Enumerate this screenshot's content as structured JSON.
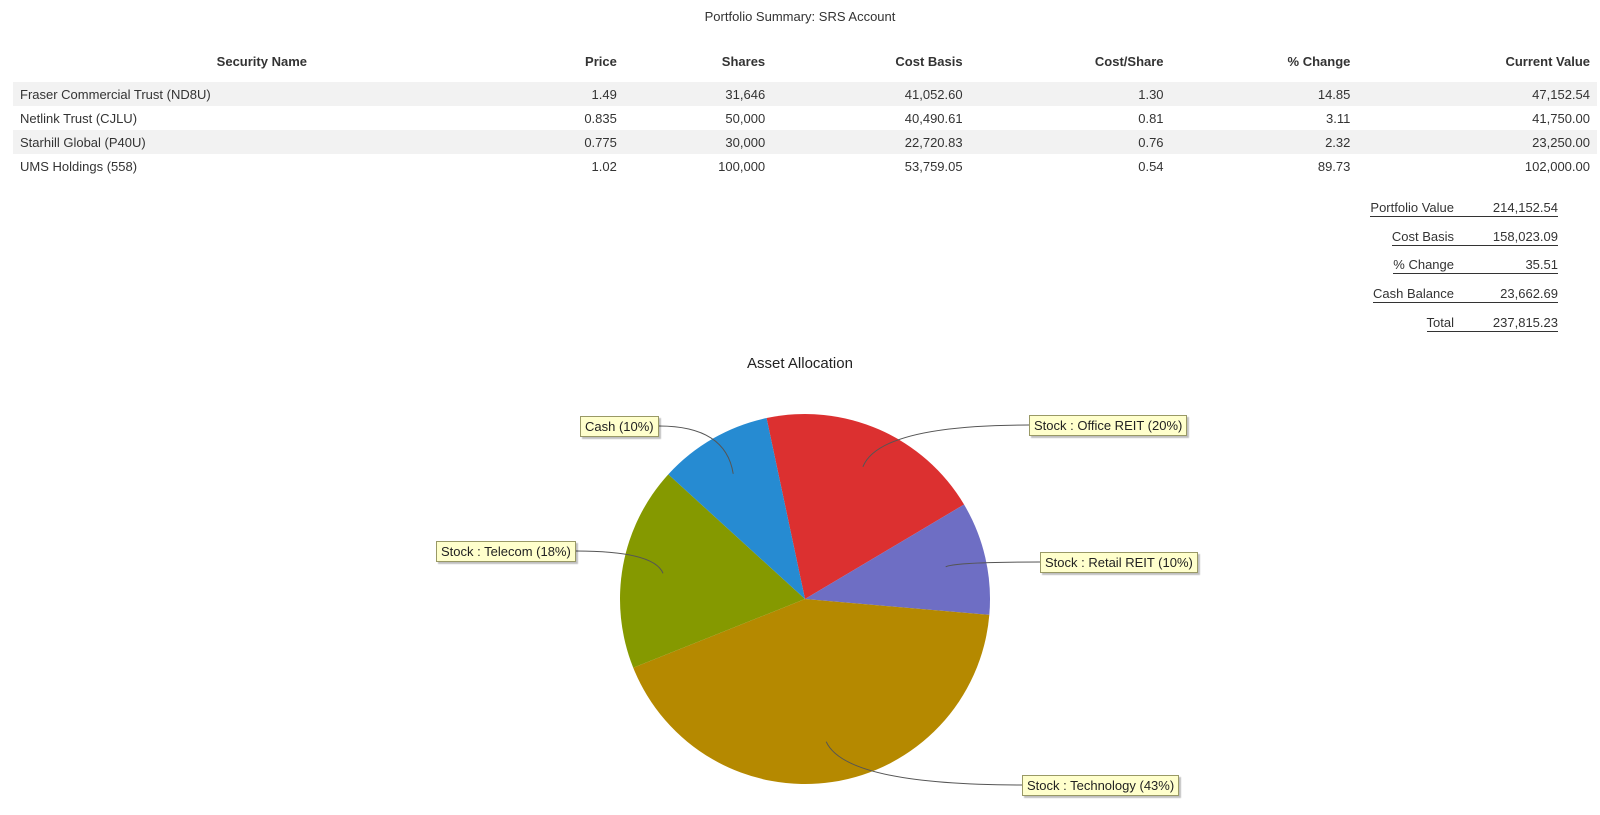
{
  "report": {
    "title": "Portfolio Summary: SRS Account"
  },
  "holdings": {
    "columns": [
      "Security Name",
      "Price",
      "Shares",
      "Cost Basis",
      "Cost/Share",
      "% Change",
      "Current Value"
    ],
    "rows": [
      [
        "Fraser Commercial Trust (ND8U)",
        "1.49",
        "31,646",
        "41,052.60",
        "1.30",
        "14.85",
        "47,152.54"
      ],
      [
        "Netlink Trust (CJLU)",
        "0.835",
        "50,000",
        "40,490.61",
        "0.81",
        "3.11",
        "41,750.00"
      ],
      [
        "Starhill Global (P40U)",
        "0.775",
        "30,000",
        "22,720.83",
        "0.76",
        "2.32",
        "23,250.00"
      ],
      [
        "UMS Holdings (558)",
        "1.02",
        "100,000",
        "53,759.05",
        "0.54",
        "89.73",
        "102,000.00"
      ]
    ]
  },
  "totals": {
    "portfolio_value_label": "Portfolio Value",
    "portfolio_value": "214,152.54",
    "cost_basis_label": "Cost Basis",
    "cost_basis": "158,023.09",
    "pct_change_label": "% Change",
    "pct_change": "35.51",
    "cash_balance_label": "Cash Balance",
    "cash_balance": "23,662.69",
    "total_label": "Total",
    "total": "237,815.23"
  },
  "chart_data": {
    "type": "pie",
    "title": "Asset Allocation",
    "slices": [
      {
        "label": "Stock : Office REIT (20%)",
        "value": 20,
        "color": "#dc3030"
      },
      {
        "label": "Stock : Retail REIT (10%)",
        "value": 10,
        "color": "#6e6ec4"
      },
      {
        "label": "Stock : Technology (43%)",
        "value": 43,
        "color": "#b58900"
      },
      {
        "label": "Stock : Telecom (18%)",
        "value": 18,
        "color": "#859900"
      },
      {
        "label": "Cash (10%)",
        "value": 10,
        "color": "#268bd2"
      }
    ]
  }
}
